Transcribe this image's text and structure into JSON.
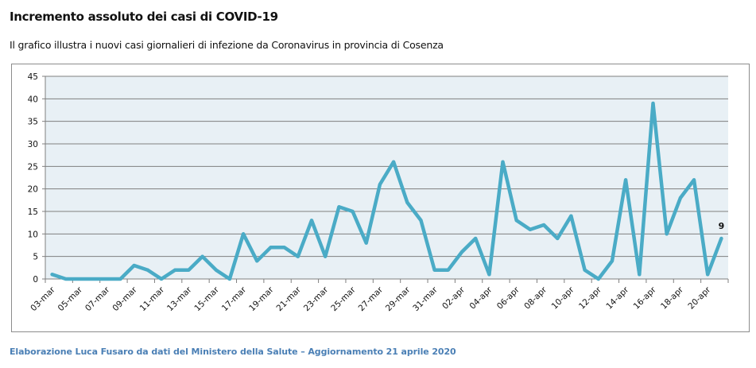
{
  "header": {
    "title": "Incremento assoluto dei casi di COVID-19",
    "subtitle": "Il grafico illustra i nuovi casi giornalieri di infezione da Coronavirus in provincia di Cosenza"
  },
  "footer": {
    "text": "Elaborazione  Luca Fusaro da dati del Ministero della Salute – Aggiornamento 21 aprile 2020"
  },
  "colors": {
    "line": "#4aabc6",
    "plot_background": "#e8f0f5",
    "gridline": "#7f7f7f",
    "footer_text": "#4a7fb5"
  },
  "chart_data": {
    "type": "line",
    "title": "Incremento assoluto dei casi di COVID-19",
    "xlabel": "",
    "ylabel": "",
    "ylim": [
      0,
      45
    ],
    "y_ticks": [
      0,
      5,
      10,
      15,
      20,
      25,
      30,
      35,
      40,
      45
    ],
    "grid": true,
    "legend": "none",
    "x": [
      "03-mar",
      "04-mar",
      "05-mar",
      "06-mar",
      "07-mar",
      "08-mar",
      "09-mar",
      "10-mar",
      "11-mar",
      "12-mar",
      "13-mar",
      "14-mar",
      "15-mar",
      "16-mar",
      "17-mar",
      "18-mar",
      "19-mar",
      "20-mar",
      "21-mar",
      "22-mar",
      "23-mar",
      "24-mar",
      "25-mar",
      "26-mar",
      "27-mar",
      "28-mar",
      "29-mar",
      "30-mar",
      "31-mar",
      "01-apr",
      "02-apr",
      "03-apr",
      "04-apr",
      "05-apr",
      "06-apr",
      "07-apr",
      "08-apr",
      "09-apr",
      "10-apr",
      "11-apr",
      "12-apr",
      "13-apr",
      "14-apr",
      "15-apr",
      "16-apr",
      "17-apr",
      "18-apr",
      "19-apr",
      "20-apr",
      "21-apr"
    ],
    "x_tick_labels": [
      "03-mar",
      "05-mar",
      "07-mar",
      "09-mar",
      "11-mar",
      "13-mar",
      "15-mar",
      "17-mar",
      "19-mar",
      "21-mar",
      "23-mar",
      "25-mar",
      "27-mar",
      "29-mar",
      "31-mar",
      "02-apr",
      "04-apr",
      "06-apr",
      "08-apr",
      "10-apr",
      "12-apr",
      "14-apr",
      "16-apr",
      "18-apr",
      "20-apr"
    ],
    "series": [
      {
        "name": "Nuovi casi",
        "values": [
          1,
          0,
          0,
          0,
          0,
          0,
          3,
          2,
          0,
          2,
          2,
          5,
          2,
          0,
          10,
          4,
          7,
          7,
          5,
          13,
          5,
          16,
          15,
          8,
          21,
          26,
          17,
          13,
          2,
          2,
          6,
          9,
          1,
          26,
          13,
          11,
          12,
          9,
          14,
          2,
          0,
          4,
          22,
          1,
          39,
          10,
          18,
          22,
          1,
          9
        ]
      }
    ],
    "annotations": [
      {
        "x": "21-apr",
        "text": "9"
      }
    ]
  }
}
